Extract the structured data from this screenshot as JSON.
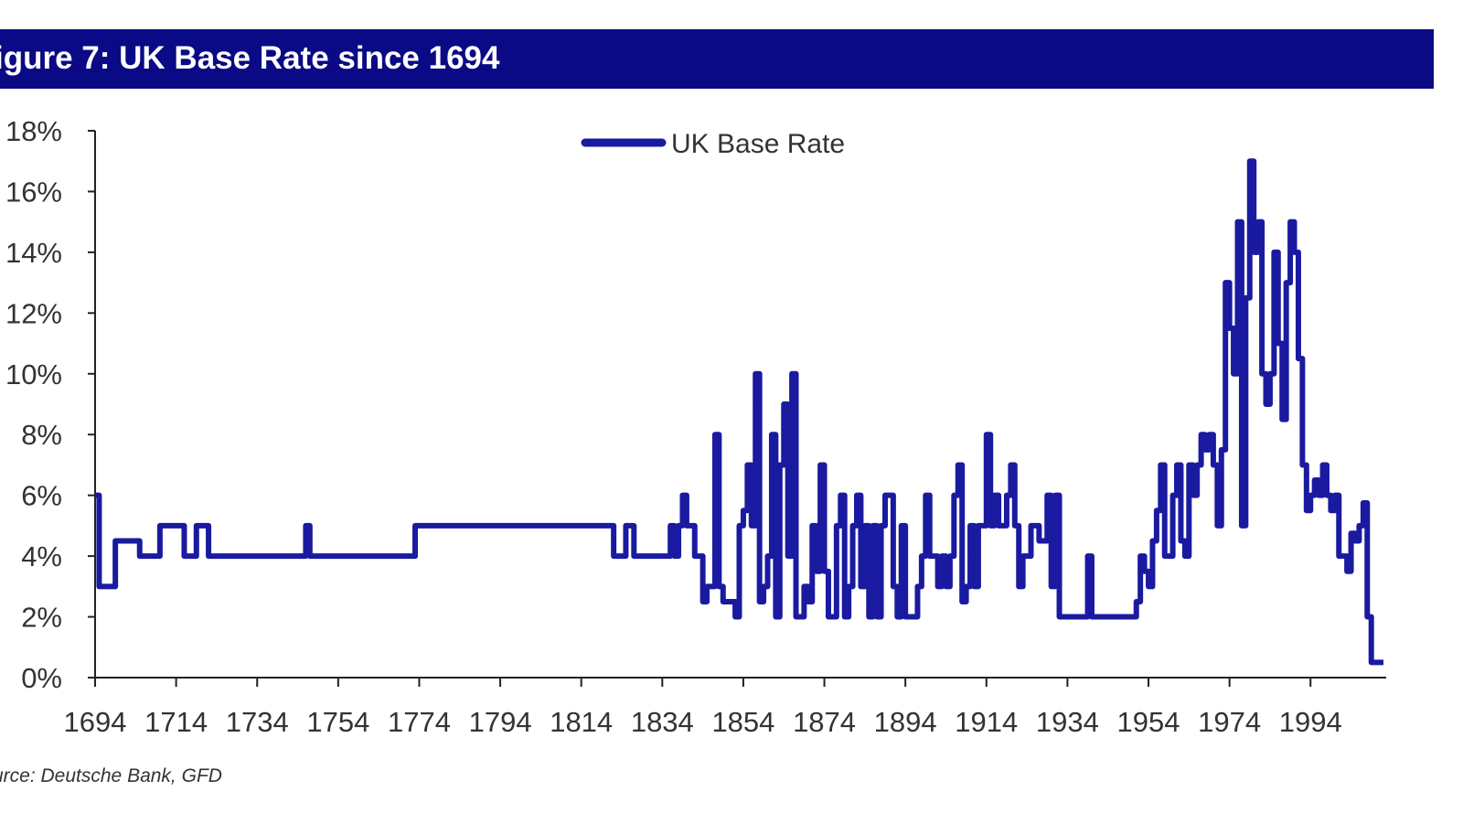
{
  "title": "igure 7: UK Base Rate since 1694",
  "source": "urce: Deutsche Bank, GFD",
  "chart_data": {
    "type": "line",
    "title": "igure 7: UK Base Rate since 1694",
    "legend": {
      "position": "top-center",
      "entries": [
        "UK Base Rate"
      ]
    },
    "xlabel": "",
    "ylabel": "",
    "xlim": [
      1694,
      2012
    ],
    "ylim": [
      0,
      18
    ],
    "x_ticks": [
      "1694",
      "1714",
      "1734",
      "1754",
      "1774",
      "1794",
      "1814",
      "1834",
      "1854",
      "1874",
      "1894",
      "1914",
      "1934",
      "1954",
      "1974",
      "1994"
    ],
    "y_ticks": [
      "0%",
      "2%",
      "4%",
      "6%",
      "8%",
      "10%",
      "12%",
      "14%",
      "16%",
      "18%"
    ],
    "grid": false,
    "color": "#1a1aa0",
    "series": [
      {
        "name": "UK Base Rate",
        "step": true,
        "x": [
          1694,
          1695,
          1699,
          1705,
          1710,
          1716,
          1719,
          1722,
          1746,
          1747,
          1773,
          1822,
          1825,
          1827,
          1836,
          1837,
          1838,
          1839,
          1840,
          1842,
          1844,
          1845,
          1847,
          1848,
          1849,
          1852,
          1853,
          1854,
          1855,
          1856,
          1857,
          1858,
          1859,
          1860,
          1861,
          1862,
          1863,
          1864,
          1865,
          1866,
          1867,
          1869,
          1870,
          1871,
          1872,
          1873,
          1874,
          1875,
          1877,
          1878,
          1879,
          1880,
          1881,
          1882,
          1883,
          1884,
          1885,
          1886,
          1887,
          1888,
          1889,
          1891,
          1892,
          1893,
          1894,
          1897,
          1898,
          1899,
          1900,
          1902,
          1903,
          1904,
          1905,
          1906,
          1907,
          1908,
          1909,
          1910,
          1911,
          1912,
          1914,
          1915,
          1916,
          1917,
          1919,
          1920,
          1921,
          1922,
          1923,
          1925,
          1927,
          1929,
          1930,
          1931,
          1932,
          1939,
          1940,
          1951,
          1952,
          1953,
          1954,
          1955,
          1956,
          1957,
          1958,
          1960,
          1961,
          1962,
          1963,
          1964,
          1965,
          1966,
          1967,
          1968,
          1969,
          1970,
          1971,
          1972,
          1973,
          1974,
          1975,
          1976,
          1977,
          1978,
          1979,
          1980,
          1981,
          1982,
          1983,
          1984,
          1985,
          1986,
          1987,
          1988,
          1989,
          1990,
          1991,
          1992,
          1993,
          1994,
          1995,
          1996,
          1997,
          1998,
          1999,
          2000,
          2001,
          2003,
          2004,
          2005,
          2006,
          2007,
          2008,
          2009,
          2012
        ],
        "y": [
          6,
          3,
          4.5,
          4,
          5,
          4,
          5,
          4,
          5,
          4,
          5,
          4,
          5,
          4,
          5,
          4,
          5,
          6,
          5,
          4,
          2.5,
          3,
          8,
          3,
          2.5,
          2,
          5,
          5.5,
          7,
          5,
          10,
          2.5,
          3,
          4,
          8,
          2,
          7,
          9,
          4,
          10,
          2,
          3,
          2.5,
          5,
          3.5,
          7,
          3.5,
          2,
          5,
          6,
          2,
          3,
          5,
          6,
          3,
          5,
          2,
          5,
          2,
          5,
          6,
          3,
          2,
          5,
          2,
          3,
          4,
          6,
          4,
          3,
          4,
          3,
          4,
          6,
          7,
          2.5,
          3,
          5,
          3,
          5,
          8,
          5,
          6,
          5,
          6,
          7,
          5,
          3,
          4,
          5,
          4.5,
          6,
          3,
          6,
          2,
          4,
          2,
          2.5,
          4,
          3.5,
          3,
          4.5,
          5.5,
          7,
          4,
          6,
          7,
          4.5,
          4,
          7,
          6,
          7,
          8,
          7.5,
          8,
          7,
          5,
          7.5,
          13,
          11.5,
          10,
          15,
          5,
          12.5,
          17,
          14,
          15,
          10,
          9,
          10,
          14,
          11,
          8.5,
          13,
          15,
          14,
          10.5,
          7,
          5.5,
          6,
          6.5,
          6,
          7,
          6,
          5.5,
          6,
          4,
          3.5,
          4.75,
          4.5,
          5,
          5.75,
          2,
          0.5,
          0.5
        ]
      }
    ]
  }
}
